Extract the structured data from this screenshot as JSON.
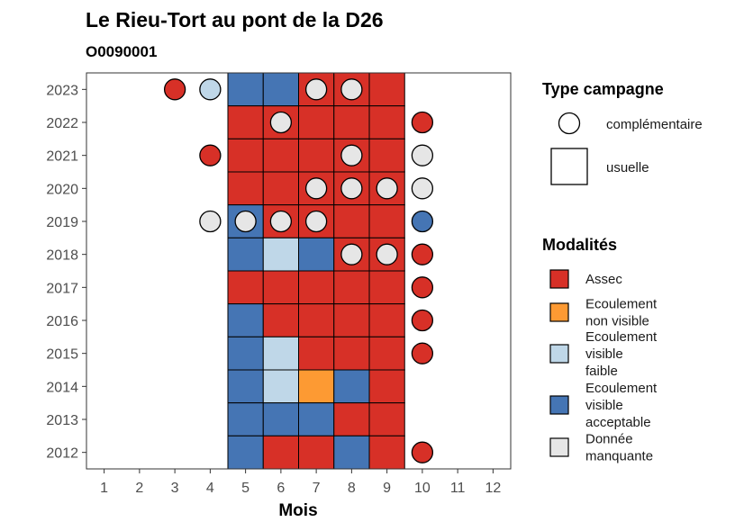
{
  "chart_data": {
    "type": "heatmap",
    "title": "Le Rieu-Tort au pont de la D26",
    "subtitle": "O0090001",
    "xlabel": "Mois",
    "ylabel": "",
    "x_ticks": [
      1,
      2,
      3,
      4,
      5,
      6,
      7,
      8,
      9,
      10,
      11,
      12
    ],
    "y_ticks": [
      2012,
      2013,
      2014,
      2015,
      2016,
      2017,
      2018,
      2019,
      2020,
      2021,
      2022,
      2023
    ],
    "xlim": [
      0.5,
      12.5
    ],
    "ylim": [
      2011.5,
      2023.5
    ],
    "grid": false,
    "legend_position": "right",
    "colors": {
      "assec": "#d73027",
      "ecoulement_non_visible": "#fd9a33",
      "ecoulement_visible_faible": "#bfd7e8",
      "ecoulement_visible_acceptable": "#4575b4",
      "donnee_manquante": "#e6e6e6"
    },
    "legend_type": {
      "title": "Type campagne",
      "items": [
        {
          "key": "complementaire",
          "label": "complémentaire",
          "shape": "circle"
        },
        {
          "key": "usuelle",
          "label": "usuelle",
          "shape": "square"
        }
      ]
    },
    "legend_modalites": {
      "title": "Modalités",
      "items": [
        {
          "key": "assec",
          "lines": [
            "Assec"
          ]
        },
        {
          "key": "ecoulement_non_visible",
          "lines": [
            "Ecoulement",
            "non visible"
          ]
        },
        {
          "key": "ecoulement_visible_faible",
          "lines": [
            "Ecoulement",
            "visible",
            "faible"
          ]
        },
        {
          "key": "ecoulement_visible_acceptable",
          "lines": [
            "Ecoulement",
            "visible",
            "acceptable"
          ]
        },
        {
          "key": "donnee_manquante",
          "lines": [
            "Donnée",
            "manquante"
          ]
        }
      ]
    },
    "usuelle": [
      {
        "year": 2023,
        "values": {
          "5": "ecoulement_visible_acceptable",
          "6": "ecoulement_visible_acceptable",
          "7": "assec",
          "8": "assec",
          "9": "assec"
        }
      },
      {
        "year": 2022,
        "values": {
          "5": "assec",
          "6": "assec",
          "7": "assec",
          "8": "assec",
          "9": "assec"
        }
      },
      {
        "year": 2021,
        "values": {
          "5": "assec",
          "6": "assec",
          "7": "assec",
          "8": "assec",
          "9": "assec"
        }
      },
      {
        "year": 2020,
        "values": {
          "5": "assec",
          "6": "assec",
          "7": "assec",
          "8": "assec",
          "9": "assec"
        }
      },
      {
        "year": 2019,
        "values": {
          "5": "ecoulement_visible_acceptable",
          "6": "assec",
          "7": "assec",
          "8": "assec",
          "9": "assec"
        }
      },
      {
        "year": 2018,
        "values": {
          "5": "ecoulement_visible_acceptable",
          "6": "ecoulement_visible_faible",
          "7": "ecoulement_visible_acceptable",
          "8": "assec",
          "9": "assec"
        }
      },
      {
        "year": 2017,
        "values": {
          "5": "assec",
          "6": "assec",
          "7": "assec",
          "8": "assec",
          "9": "assec"
        }
      },
      {
        "year": 2016,
        "values": {
          "5": "ecoulement_visible_acceptable",
          "6": "assec",
          "7": "assec",
          "8": "assec",
          "9": "assec"
        }
      },
      {
        "year": 2015,
        "values": {
          "5": "ecoulement_visible_acceptable",
          "6": "ecoulement_visible_faible",
          "7": "assec",
          "8": "assec",
          "9": "assec"
        }
      },
      {
        "year": 2014,
        "values": {
          "5": "ecoulement_visible_acceptable",
          "6": "ecoulement_visible_faible",
          "7": "ecoulement_non_visible",
          "8": "ecoulement_visible_acceptable",
          "9": "assec"
        }
      },
      {
        "year": 2013,
        "values": {
          "5": "ecoulement_visible_acceptable",
          "6": "ecoulement_visible_acceptable",
          "7": "ecoulement_visible_acceptable",
          "8": "assec",
          "9": "assec"
        }
      },
      {
        "year": 2012,
        "values": {
          "5": "ecoulement_visible_acceptable",
          "6": "assec",
          "7": "assec",
          "8": "ecoulement_visible_acceptable",
          "9": "assec"
        }
      }
    ],
    "complementaire": [
      {
        "year": 2023,
        "month": 3,
        "value": "assec"
      },
      {
        "year": 2023,
        "month": 4,
        "value": "ecoulement_visible_faible"
      },
      {
        "year": 2023,
        "month": 7,
        "value": "donnee_manquante"
      },
      {
        "year": 2023,
        "month": 8,
        "value": "donnee_manquante"
      },
      {
        "year": 2022,
        "month": 6,
        "value": "donnee_manquante"
      },
      {
        "year": 2022,
        "month": 10,
        "value": "assec"
      },
      {
        "year": 2021,
        "month": 4,
        "value": "assec"
      },
      {
        "year": 2021,
        "month": 8,
        "value": "donnee_manquante"
      },
      {
        "year": 2021,
        "month": 10,
        "value": "donnee_manquante"
      },
      {
        "year": 2020,
        "month": 7,
        "value": "donnee_manquante"
      },
      {
        "year": 2020,
        "month": 8,
        "value": "donnee_manquante"
      },
      {
        "year": 2020,
        "month": 9,
        "value": "donnee_manquante"
      },
      {
        "year": 2020,
        "month": 10,
        "value": "donnee_manquante"
      },
      {
        "year": 2019,
        "month": 4,
        "value": "donnee_manquante"
      },
      {
        "year": 2019,
        "month": 5,
        "value": "donnee_manquante"
      },
      {
        "year": 2019,
        "month": 6,
        "value": "donnee_manquante"
      },
      {
        "year": 2019,
        "month": 7,
        "value": "donnee_manquante"
      },
      {
        "year": 2019,
        "month": 10,
        "value": "ecoulement_visible_acceptable"
      },
      {
        "year": 2018,
        "month": 8,
        "value": "donnee_manquante"
      },
      {
        "year": 2018,
        "month": 9,
        "value": "donnee_manquante"
      },
      {
        "year": 2018,
        "month": 10,
        "value": "assec"
      },
      {
        "year": 2017,
        "month": 10,
        "value": "assec"
      },
      {
        "year": 2016,
        "month": 10,
        "value": "assec"
      },
      {
        "year": 2015,
        "month": 10,
        "value": "assec"
      },
      {
        "year": 2012,
        "month": 10,
        "value": "assec"
      }
    ]
  }
}
